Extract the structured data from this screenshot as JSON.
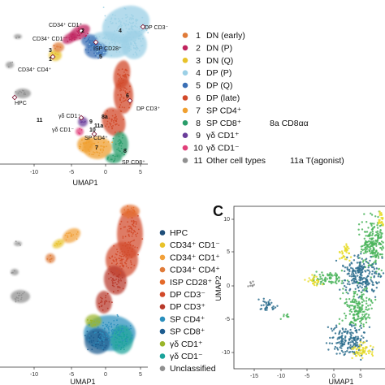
{
  "chart_data": [
    {
      "type": "scatter",
      "panel": "top-left",
      "xlabel": "UMAP1",
      "xticks": [
        "-10",
        "-5",
        "0",
        "5"
      ],
      "legend": [
        {
          "num": "1",
          "label": "DN (early)",
          "color": "#e07b39"
        },
        {
          "num": "2",
          "label": "DN (P)",
          "color": "#c0245e"
        },
        {
          "num": "3",
          "label": "DN (Q)",
          "color": "#e8c22a"
        },
        {
          "num": "4",
          "label": "DP (P)",
          "color": "#9cd0e6"
        },
        {
          "num": "5",
          "label": "DP (Q)",
          "color": "#3a6fb5"
        },
        {
          "num": "6",
          "label": "DP (late)",
          "color": "#d24a2a"
        },
        {
          "num": "7",
          "label": "SP CD4⁺",
          "color": "#f0a030"
        },
        {
          "num": "8",
          "label": "SP CD8⁺",
          "color": "#2a9d6a",
          "extra": "8a  CD8αα"
        },
        {
          "num": "9",
          "label": "γδ CD1⁺",
          "color": "#6a3d9a"
        },
        {
          "num": "10",
          "label": "γδ CD1⁻",
          "color": "#e0407a"
        },
        {
          "num": "11",
          "label": "Other cell types",
          "color": "#909090",
          "extra": "11a  T(agonist)"
        }
      ],
      "annotations": [
        {
          "text": "CD34⁺ CD1⁺"
        },
        {
          "text": "2"
        },
        {
          "text": "CD34⁺ CD1⁻"
        },
        {
          "text": "3"
        },
        {
          "text": "1"
        },
        {
          "text": "CD34⁺ CD4⁺"
        },
        {
          "text": "4"
        },
        {
          "text": "DP CD3⁻"
        },
        {
          "text": "ISP CD28⁺"
        },
        {
          "text": "5"
        },
        {
          "text": "HPC"
        },
        {
          "text": "11"
        },
        {
          "text": "6"
        },
        {
          "text": "DP CD3⁺"
        },
        {
          "text": "8a"
        },
        {
          "text": "γδ CD1⁺"
        },
        {
          "text": "9"
        },
        {
          "text": "10"
        },
        {
          "text": "γδ CD1⁻"
        },
        {
          "text": "11a"
        },
        {
          "text": "SP CD4⁺"
        },
        {
          "text": "7"
        },
        {
          "text": "8"
        },
        {
          "text": "SP CD8⁺"
        }
      ]
    },
    {
      "type": "scatter",
      "panel": "bottom-left",
      "xlabel": "UMAP1",
      "xticks": [
        "-10",
        "-5",
        "0",
        "5"
      ],
      "legend": [
        {
          "label": "HPC",
          "color": "#1f4e79"
        },
        {
          "label": "CD34⁺ CD1⁻",
          "color": "#e8c22a"
        },
        {
          "label": "CD34⁺ CD1⁺",
          "color": "#f2a13a"
        },
        {
          "label": "CD34⁺ CD4⁺",
          "color": "#e07b39"
        },
        {
          "label": "ISP CD28⁺",
          "color": "#e46a2a"
        },
        {
          "label": "DP CD3⁻",
          "color": "#d24a2a"
        },
        {
          "label": "DP CD3⁺",
          "color": "#b8392a"
        },
        {
          "label": "SP CD4⁺",
          "color": "#2a8fbd"
        },
        {
          "label": "SP CD8⁺",
          "color": "#1d5c8f"
        },
        {
          "label": "γδ CD1⁺",
          "color": "#9ab52a"
        },
        {
          "label": "γδ CD1⁻",
          "color": "#1aa39a"
        },
        {
          "label": "Unclassified",
          "color": "#909090"
        }
      ]
    },
    {
      "type": "scatter",
      "panel": "C",
      "panel_letter": "C",
      "xlabel": "UMAP1",
      "ylabel": "UMAP2",
      "xticks": [
        "-15",
        "-10",
        "-5",
        "0",
        "5"
      ],
      "yticks": [
        "10",
        "5",
        "0",
        "-5",
        "-10"
      ],
      "xlim": [
        -15,
        7
      ],
      "ylim": [
        -12,
        12
      ],
      "series_colors": [
        "#2e6f8e",
        "#4ab45a",
        "#e8dc2a",
        "#8a8a8a"
      ]
    }
  ]
}
